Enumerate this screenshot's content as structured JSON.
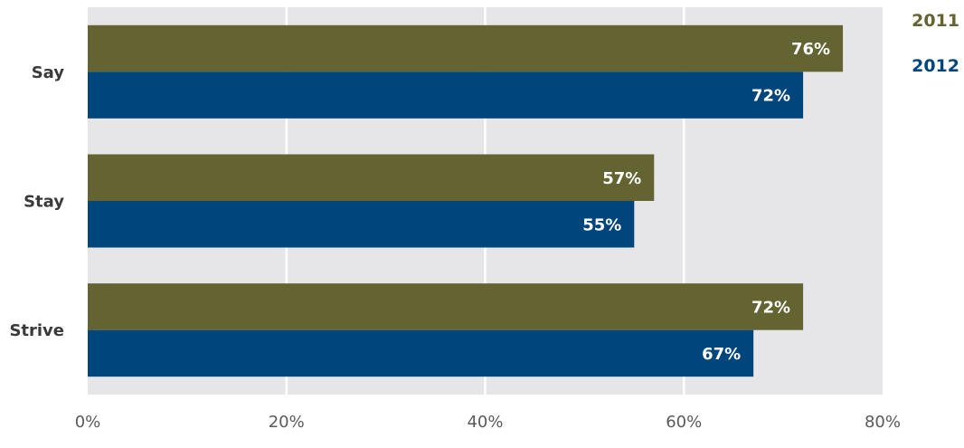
{
  "chart_data": {
    "type": "bar",
    "orientation": "horizontal",
    "categories": [
      "Say",
      "Stay",
      "Strive"
    ],
    "series": [
      {
        "name": "2011",
        "values": [
          76,
          57,
          72
        ],
        "color": "#646433"
      },
      {
        "name": "2012",
        "values": [
          72,
          55,
          67
        ],
        "color": "#00457c"
      }
    ],
    "xlim": [
      0,
      80
    ],
    "x_ticks": [
      0,
      20,
      40,
      60,
      80
    ],
    "tick_suffix": "%",
    "value_suffix": "%",
    "grid": true,
    "legend_position": "top-right",
    "plot_background": "#e6e6e8",
    "grid_color": "#ffffff"
  }
}
